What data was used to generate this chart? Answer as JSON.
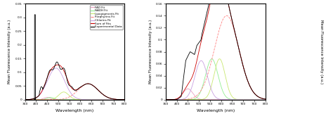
{
  "xlim1": [
    350,
    800
  ],
  "xlim2": [
    350,
    800
  ],
  "ylim1": [
    0,
    0.35
  ],
  "ylim2": [
    0,
    0.16
  ],
  "xlabel": "Wavelength (nm)",
  "ylabel1": "Mean Fluorescence Intensity (a.u.)",
  "ylabel2": "Mean Fluorescence Intensity (a.u.)",
  "ylabel3": "Mean Fluorescence Intensity (a.u.)",
  "yticks1": [
    0,
    0.05,
    0.1,
    0.15,
    0.2,
    0.25,
    0.3,
    0.35
  ],
  "yticks2": [
    0,
    0.02,
    0.04,
    0.06,
    0.08,
    0.1,
    0.12,
    0.14,
    0.16
  ],
  "xticks": [
    350,
    400,
    450,
    500,
    550,
    600,
    650,
    700,
    750,
    800
  ],
  "legend_entries": [
    "FAD Fit",
    "NADH Fit",
    "Lipopigments Fit",
    "Porphyrins Fit",
    "Chlorins Fit",
    "Sum of Fits",
    "Experimental Data"
  ],
  "colors": {
    "FAD": "#E8A0C0",
    "NADH": "#90EE90",
    "Lipopigments": "#C8E870",
    "Porphyrins": "#FF8080",
    "Chlorins": "#C8A0E0",
    "SumOfFits": "#CC0000",
    "Experimental": "#000000"
  },
  "bg_color": "#f5f5f5"
}
